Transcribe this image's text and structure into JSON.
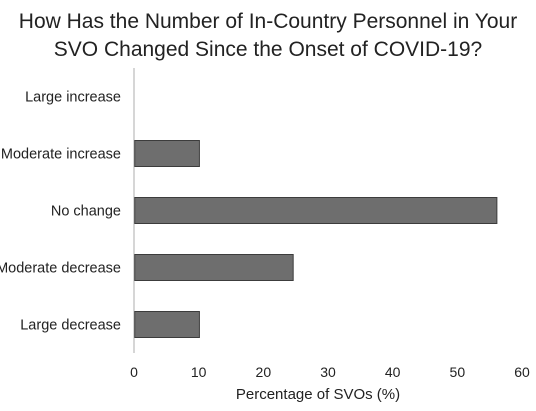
{
  "chart_data": {
    "type": "bar",
    "orientation": "horizontal",
    "title_lines": [
      "How Has the Number of In-Country Personnel in Your",
      "SVO Changed Since the Onset of COVID-19?"
    ],
    "categories": [
      "Large increase",
      "Moderate increase",
      "No change",
      "Moderate decrease",
      "Large decrease"
    ],
    "values": [
      0,
      10,
      56,
      24.5,
      10
    ],
    "xlabel": "Percentage of SVOs (%)",
    "ylabel": "",
    "xlim": [
      0,
      60
    ],
    "xticks": [
      "0",
      "10",
      "20",
      "30",
      "40",
      "50",
      "60"
    ],
    "bar_color": "#6e6e6e",
    "bar_edge_color": "#3c3c3c",
    "axis_color": "#c8c8c8",
    "grid": false,
    "legend": "none"
  }
}
